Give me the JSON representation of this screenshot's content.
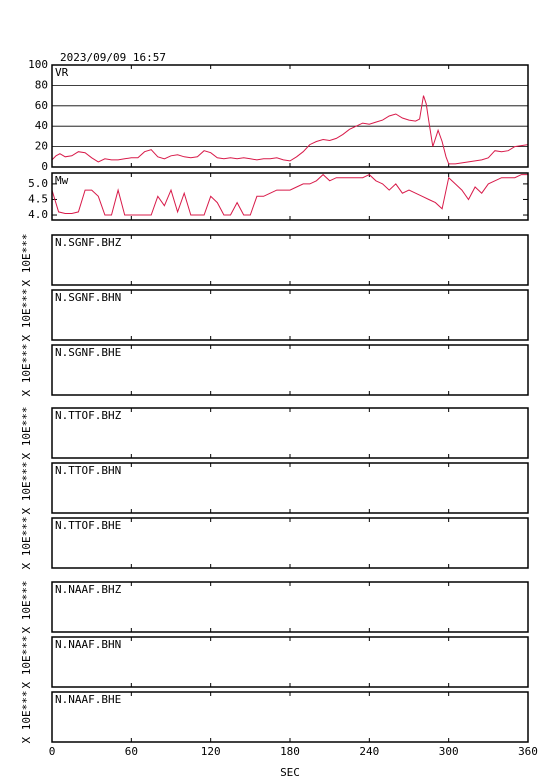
{
  "chart_data": [
    {
      "type": "line",
      "title": "2023/09/09 16:57",
      "label": "VR",
      "color": "#d81b4a",
      "grid": true,
      "ylim": [
        0,
        100
      ],
      "yticks": [
        0,
        20,
        40,
        60,
        80,
        100
      ],
      "x": [
        0,
        3,
        6,
        10,
        15,
        20,
        25,
        30,
        35,
        40,
        45,
        50,
        55,
        60,
        65,
        70,
        75,
        80,
        85,
        90,
        95,
        100,
        105,
        110,
        115,
        120,
        125,
        130,
        135,
        140,
        145,
        150,
        155,
        160,
        165,
        170,
        175,
        180,
        185,
        190,
        195,
        200,
        205,
        210,
        215,
        220,
        225,
        230,
        235,
        240,
        245,
        250,
        255,
        260,
        265,
        270,
        275,
        278,
        281,
        283,
        285,
        288,
        292,
        295,
        298,
        300,
        305,
        310,
        315,
        320,
        325,
        330,
        335,
        340,
        345,
        350,
        355,
        360
      ],
      "values": [
        7,
        11,
        13,
        10,
        11,
        15,
        14,
        9,
        5,
        8,
        7,
        7,
        8,
        9,
        9,
        15,
        17,
        10,
        8,
        11,
        12,
        10,
        9,
        10,
        16,
        14,
        9,
        8,
        9,
        8,
        9,
        8,
        7,
        8,
        8,
        9,
        7,
        6,
        10,
        15,
        22,
        25,
        27,
        26,
        28,
        32,
        37,
        40,
        43,
        42,
        44,
        46,
        50,
        52,
        48,
        46,
        45,
        47,
        70,
        62,
        45,
        20,
        36,
        25,
        10,
        3,
        3,
        4,
        5,
        6,
        7,
        9,
        16,
        15,
        16,
        20,
        21,
        22
      ]
    },
    {
      "type": "line",
      "label": "Mw",
      "color": "#d81b4a",
      "grid": false,
      "ylim": [
        3.84,
        5.35
      ],
      "yticks": [
        {
          "value": 4,
          "label": "4.0"
        },
        4.5,
        {
          "value": 5,
          "label": "5.0"
        }
      ],
      "x": [
        0,
        5,
        10,
        15,
        20,
        25,
        30,
        35,
        40,
        45,
        50,
        55,
        60,
        65,
        70,
        75,
        80,
        85,
        90,
        95,
        100,
        105,
        110,
        115,
        120,
        125,
        130,
        135,
        140,
        145,
        150,
        155,
        160,
        165,
        170,
        175,
        180,
        185,
        190,
        195,
        200,
        205,
        210,
        215,
        220,
        225,
        230,
        235,
        240,
        245,
        250,
        255,
        260,
        265,
        270,
        275,
        280,
        285,
        290,
        295,
        300,
        305,
        310,
        315,
        320,
        325,
        330,
        335,
        340,
        345,
        350,
        355,
        360
      ],
      "values": [
        4.8,
        4.1,
        4.05,
        4.05,
        4.1,
        4.8,
        4.8,
        4.6,
        4.0,
        4.0,
        4.8,
        4.0,
        4.0,
        4.0,
        4.0,
        4.0,
        4.6,
        4.3,
        4.8,
        4.1,
        4.7,
        4.0,
        4.0,
        4.0,
        4.6,
        4.4,
        4.0,
        4.0,
        4.4,
        4.0,
        4.0,
        4.6,
        4.6,
        4.7,
        4.8,
        4.8,
        4.8,
        4.9,
        5.0,
        5.0,
        5.1,
        5.3,
        5.1,
        5.2,
        5.2,
        5.2,
        5.2,
        5.2,
        5.3,
        5.1,
        5.0,
        4.8,
        5.0,
        4.7,
        4.8,
        4.7,
        4.6,
        4.5,
        4.4,
        4.2,
        5.2,
        5.0,
        4.8,
        4.5,
        4.9,
        4.7,
        5.0,
        5.1,
        5.2,
        5.2,
        5.2,
        5.3,
        5.3
      ]
    },
    {
      "type": "waveform",
      "label": "N.SGNF.BHZ",
      "ylabel": "X 10E***"
    },
    {
      "type": "waveform",
      "label": "N.SGNF.BHN",
      "ylabel": "X 10E***"
    },
    {
      "type": "waveform",
      "label": "N.SGNF.BHE",
      "ylabel": "X 10E***"
    },
    {
      "type": "waveform",
      "label": "N.TTOF.BHZ",
      "ylabel": "X 10E***"
    },
    {
      "type": "waveform",
      "label": "N.TTOF.BHN",
      "ylabel": "X 10E***"
    },
    {
      "type": "waveform",
      "label": "N.TTOF.BHE",
      "ylabel": "X 10E***"
    },
    {
      "type": "waveform",
      "label": "N.NAAF.BHZ",
      "ylabel": "X 10E***"
    },
    {
      "type": "waveform",
      "label": "N.NAAF.BHN",
      "ylabel": "X 10E***"
    },
    {
      "type": "waveform",
      "label": "N.NAAF.BHE",
      "ylabel": "X 10E***",
      "xlim": [
        0,
        360
      ],
      "xticks": [
        0,
        60,
        120,
        180,
        240,
        300,
        360
      ],
      "xlabel": "SEC"
    }
  ]
}
